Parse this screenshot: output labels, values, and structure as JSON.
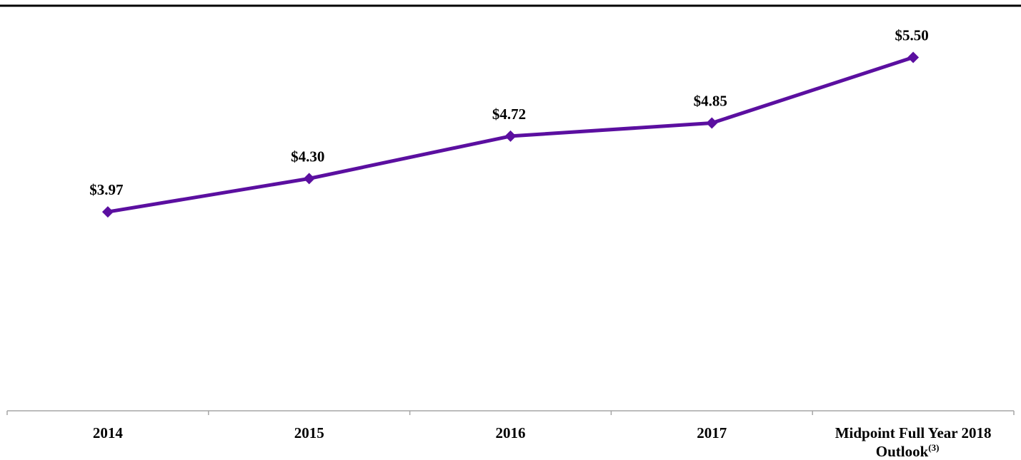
{
  "chart_data": {
    "type": "line",
    "categories": [
      "2014",
      "2015",
      "2016",
      "2017",
      "Midpoint Full Year 2018 Outlook(3)"
    ],
    "category_lines": [
      [
        "2014"
      ],
      [
        "2015"
      ],
      [
        "2016"
      ],
      [
        "2017"
      ],
      [
        "Midpoint Full Year 2018",
        "Outlook",
        "(3)"
      ]
    ],
    "series": [
      {
        "values": [
          3.97,
          4.3,
          4.72,
          4.85,
          5.5
        ]
      }
    ],
    "data_labels": [
      "$3.97",
      "$4.30",
      "$4.72",
      "$4.85",
      "$5.50"
    ],
    "title": "",
    "xlabel": "",
    "ylabel": "",
    "ylim": [
      2.0,
      5.8
    ],
    "grid": false,
    "legend": "none",
    "top_rule": true,
    "colors": {
      "line": "#5B0FA0",
      "marker": "#5B0FA0",
      "axis": "#A6A6A6",
      "rule": "#000000",
      "text": "#000000"
    }
  }
}
